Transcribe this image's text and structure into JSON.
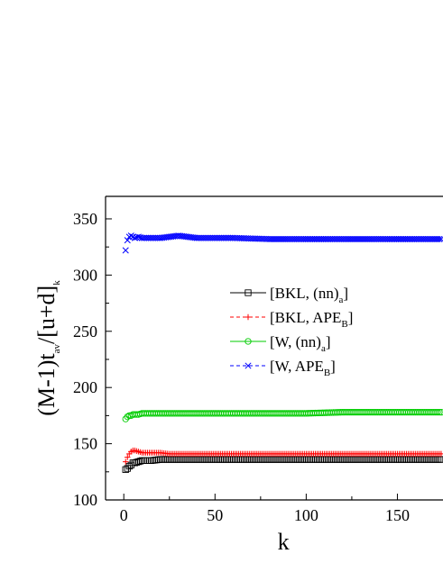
{
  "chart_data": {
    "type": "scatter",
    "xlabel": "k",
    "ylabel_parts": [
      "(M-1)t",
      "av",
      "/[u+d]",
      "k"
    ],
    "xlim": [
      -10,
      175
    ],
    "ylim": [
      100,
      370
    ],
    "x_ticks": [
      0,
      50,
      100,
      150
    ],
    "y_ticks": [
      100,
      150,
      200,
      250,
      300,
      350
    ],
    "legend_placement": "center-right",
    "series": [
      {
        "name": "[BKL, (nn)a]",
        "label_main": "[BKL, (nn)",
        "label_sub": "a",
        "label_end": "]",
        "color": "#000000",
        "marker": "square",
        "points": [
          [
            1,
            127
          ],
          [
            2,
            128
          ],
          [
            3,
            130
          ],
          [
            4,
            131
          ],
          [
            5,
            133
          ],
          [
            6,
            133
          ],
          [
            8,
            134
          ],
          [
            10,
            135
          ],
          [
            12,
            135
          ],
          [
            15,
            135
          ],
          [
            20,
            136
          ],
          [
            25,
            136
          ],
          [
            30,
            136
          ],
          [
            40,
            136
          ],
          [
            50,
            136
          ],
          [
            60,
            136
          ],
          [
            80,
            136
          ],
          [
            100,
            136
          ],
          [
            120,
            136
          ],
          [
            140,
            136
          ],
          [
            160,
            136
          ],
          [
            175,
            136
          ]
        ]
      },
      {
        "name": "[BKL, APEB]",
        "label_main": "[BKL, APE",
        "label_sub": "B",
        "label_end": "]",
        "color": "#ff0000",
        "marker": "plus",
        "points": [
          [
            1,
            134
          ],
          [
            2,
            138
          ],
          [
            3,
            141
          ],
          [
            4,
            143
          ],
          [
            5,
            144
          ],
          [
            6,
            144
          ],
          [
            8,
            143
          ],
          [
            10,
            142
          ],
          [
            12,
            142
          ],
          [
            15,
            142
          ],
          [
            20,
            142
          ],
          [
            25,
            141
          ],
          [
            30,
            141
          ],
          [
            40,
            141
          ],
          [
            50,
            141
          ],
          [
            60,
            141
          ],
          [
            80,
            141
          ],
          [
            100,
            141
          ],
          [
            120,
            141
          ],
          [
            140,
            141
          ],
          [
            160,
            141
          ],
          [
            175,
            141
          ]
        ]
      },
      {
        "name": "[W, (nn)a]",
        "label_main": "[W, (nn)",
        "label_sub": "a",
        "label_end": "]",
        "color": "#00cc00",
        "marker": "circle",
        "points": [
          [
            1,
            172
          ],
          [
            2,
            174
          ],
          [
            3,
            175
          ],
          [
            4,
            175
          ],
          [
            5,
            176
          ],
          [
            6,
            176
          ],
          [
            8,
            176
          ],
          [
            10,
            177
          ],
          [
            12,
            177
          ],
          [
            15,
            177
          ],
          [
            20,
            177
          ],
          [
            25,
            177
          ],
          [
            30,
            177
          ],
          [
            40,
            177
          ],
          [
            50,
            177
          ],
          [
            60,
            177
          ],
          [
            80,
            177
          ],
          [
            100,
            177
          ],
          [
            120,
            178
          ],
          [
            140,
            178
          ],
          [
            160,
            178
          ],
          [
            175,
            178
          ]
        ]
      },
      {
        "name": "[W, APEB]",
        "label_main": "[W, APE",
        "label_sub": "B",
        "label_end": "]",
        "color": "#0000ff",
        "marker": "x",
        "points": [
          [
            1,
            322
          ],
          [
            2,
            331
          ],
          [
            3,
            334
          ],
          [
            4,
            335
          ],
          [
            5,
            334
          ],
          [
            6,
            333
          ],
          [
            8,
            334
          ],
          [
            10,
            333
          ],
          [
            12,
            333
          ],
          [
            15,
            333
          ],
          [
            20,
            333
          ],
          [
            25,
            334
          ],
          [
            30,
            335
          ],
          [
            35,
            334
          ],
          [
            40,
            333
          ],
          [
            50,
            333
          ],
          [
            60,
            333
          ],
          [
            80,
            332
          ],
          [
            100,
            332
          ],
          [
            120,
            332
          ],
          [
            140,
            332
          ],
          [
            160,
            332
          ],
          [
            175,
            332
          ]
        ]
      }
    ]
  }
}
